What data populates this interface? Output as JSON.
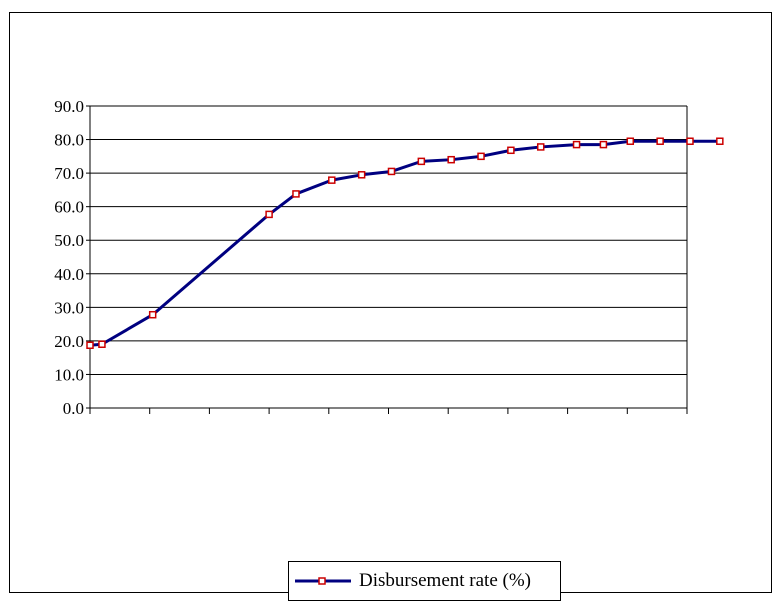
{
  "chart_data": {
    "type": "line",
    "title": "",
    "xlabel": "",
    "ylabel": "",
    "ylim": [
      0,
      90
    ],
    "y_ticks": [
      "0.0",
      "10.0",
      "20.0",
      "30.0",
      "40.0",
      "50.0",
      "60.0",
      "70.0",
      "80.0",
      "90.0"
    ],
    "x_tick_count": 11,
    "grid": "horizontal",
    "legend_position": "bottom",
    "series": [
      {
        "name": "Disbursement rate (%)",
        "line_color": "#000080",
        "marker_color": "#cc0000",
        "points": [
          {
            "x": 0.0,
            "y": 18.7
          },
          {
            "x": 0.2,
            "y": 19.0
          },
          {
            "x": 1.05,
            "y": 27.8
          },
          {
            "x": 3.0,
            "y": 57.7
          },
          {
            "x": 3.45,
            "y": 63.8
          },
          {
            "x": 4.05,
            "y": 67.9
          },
          {
            "x": 4.55,
            "y": 69.5
          },
          {
            "x": 5.05,
            "y": 70.5
          },
          {
            "x": 5.55,
            "y": 73.5
          },
          {
            "x": 6.05,
            "y": 74.0
          },
          {
            "x": 6.55,
            "y": 75.0
          },
          {
            "x": 7.05,
            "y": 76.8
          },
          {
            "x": 7.55,
            "y": 77.8
          },
          {
            "x": 8.15,
            "y": 78.5
          },
          {
            "x": 8.6,
            "y": 78.5
          },
          {
            "x": 9.05,
            "y": 79.5
          },
          {
            "x": 9.55,
            "y": 79.5
          },
          {
            "x": 10.05,
            "y": 79.5
          },
          {
            "x": 10.55,
            "y": 79.5
          }
        ]
      }
    ]
  },
  "legend": {
    "label": "Disbursement rate (%)"
  }
}
